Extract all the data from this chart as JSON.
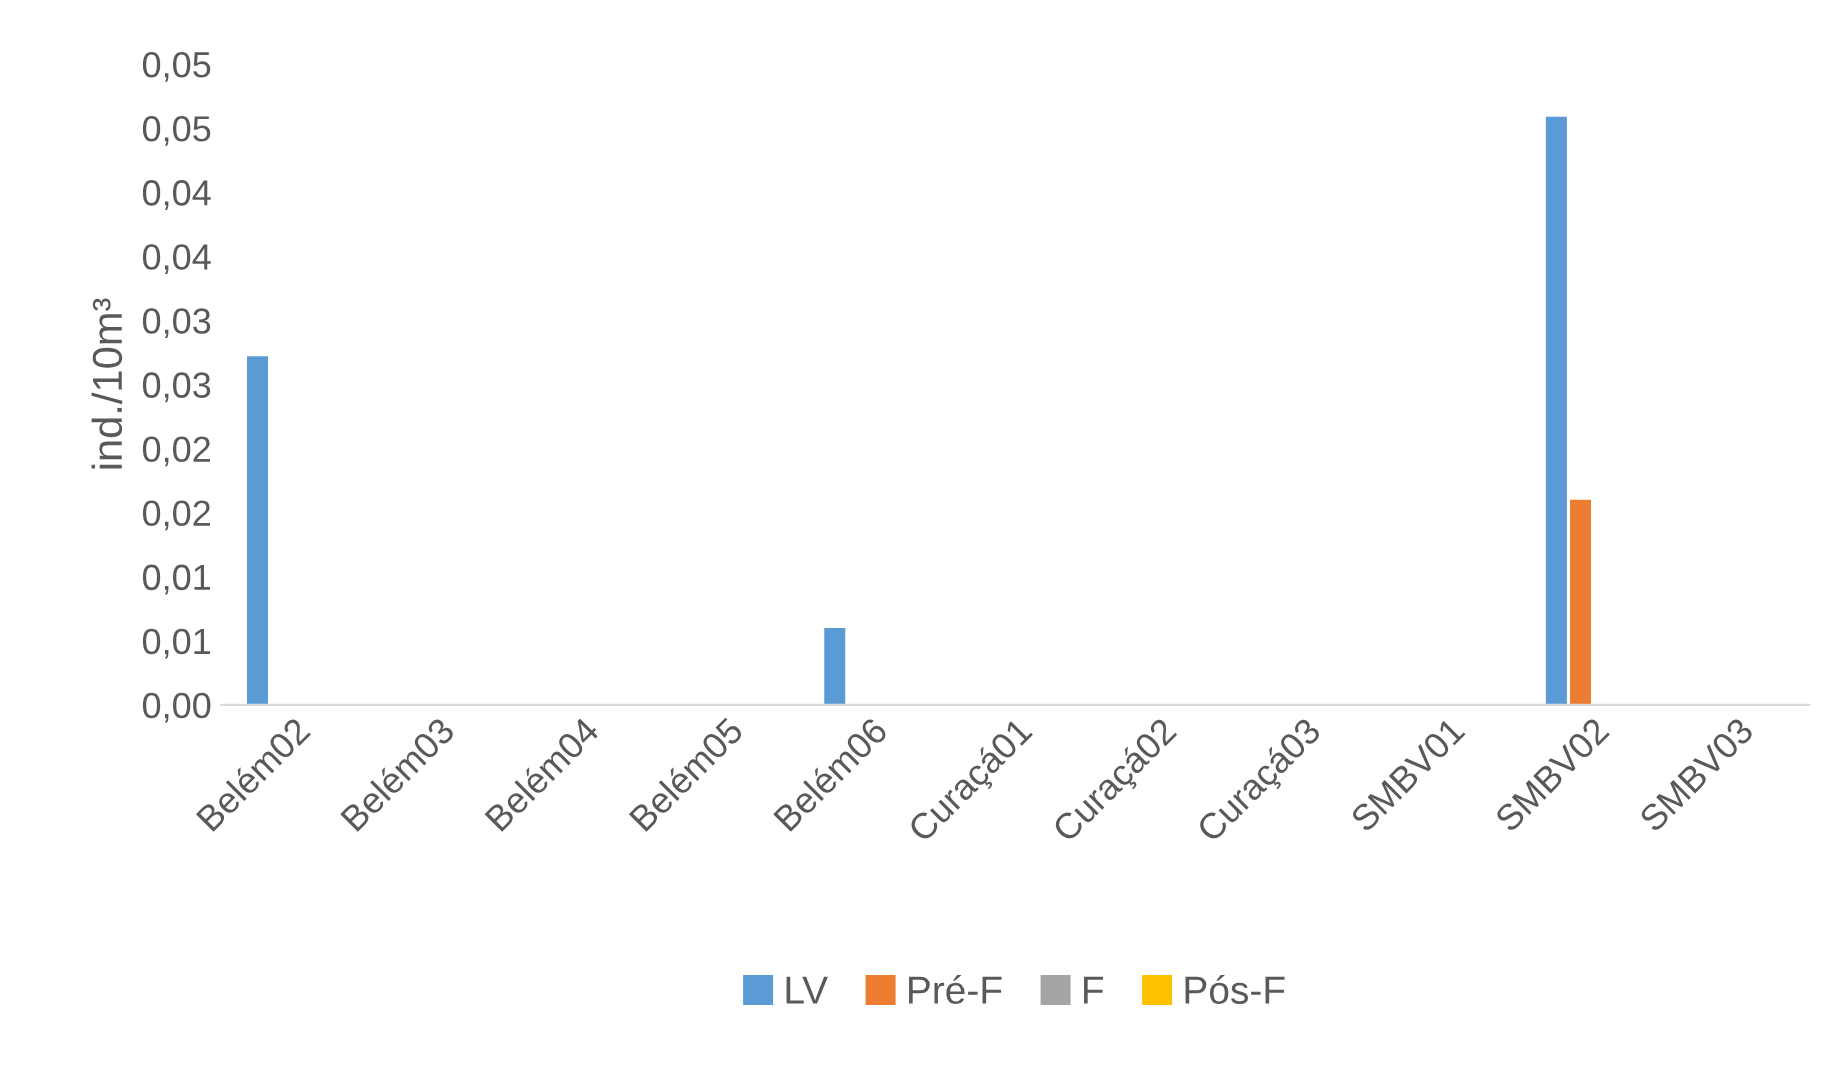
{
  "chart_data": {
    "type": "bar",
    "ylabel": "ind./10m³",
    "categories": [
      "Belém02",
      "Belém03",
      "Belém04",
      "Belém05",
      "Belém06",
      "Curaçá01",
      "Curaçá02",
      "Curaçá03",
      "SMBV01",
      "SMBV02",
      "SMBV03"
    ],
    "series": [
      {
        "name": "LV",
        "color": "#5b9bd5",
        "values": [
          0.0272,
          0,
          0,
          0,
          0.006,
          0,
          0,
          0,
          0,
          0.0459,
          0
        ]
      },
      {
        "name": "Pré-F",
        "color": "#ed7d31",
        "values": [
          0,
          0,
          0,
          0,
          0,
          0,
          0,
          0,
          0,
          0.016,
          0
        ]
      },
      {
        "name": "F",
        "color": "#a5a5a5",
        "values": [
          0,
          0,
          0,
          0,
          0,
          0,
          0,
          0,
          0,
          0,
          0
        ]
      },
      {
        "name": "Pós-F",
        "color": "#ffc000",
        "values": [
          0,
          0,
          0,
          0,
          0,
          0,
          0,
          0,
          0,
          0,
          0
        ]
      }
    ],
    "ylim": [
      0,
      0.05
    ],
    "yticks": [
      {
        "value": 0,
        "label": "0,00"
      },
      {
        "value": 0.005,
        "label": "0,01"
      },
      {
        "value": 0.01,
        "label": "0,01"
      },
      {
        "value": 0.015,
        "label": "0,02"
      },
      {
        "value": 0.02,
        "label": "0,02"
      },
      {
        "value": 0.025,
        "label": "0,03"
      },
      {
        "value": 0.03,
        "label": "0,03"
      },
      {
        "value": 0.035,
        "label": "0,04"
      },
      {
        "value": 0.04,
        "label": "0,04"
      },
      {
        "value": 0.045,
        "label": "0,05"
      },
      {
        "value": 0.05,
        "label": "0,05"
      }
    ],
    "grid": false,
    "legend": "bottom"
  }
}
